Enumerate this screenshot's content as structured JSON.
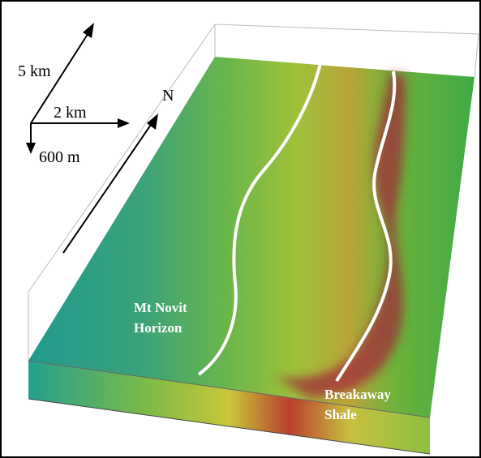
{
  "scale": {
    "north_length": "5 km",
    "east_length": "2 km",
    "depth": "600 m",
    "north": "N"
  },
  "labels": {
    "mt_novit": [
      "Mt Novit",
      "Horizon"
    ],
    "breakaway": [
      "Breakaway",
      "Shale"
    ]
  }
}
